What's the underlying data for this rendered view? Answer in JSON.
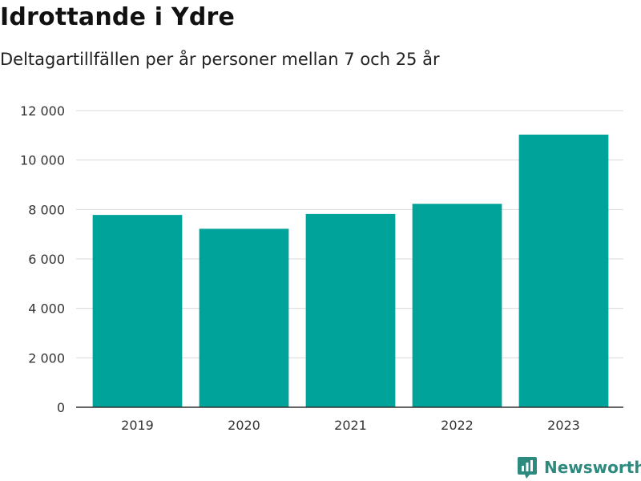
{
  "header": {
    "title": "Idrottande i Ydre",
    "subtitle": "Deltagartillfällen per år personer mellan 7 och 25 år"
  },
  "brand": {
    "name": "Newsworthy",
    "color": "#2c8a7e"
  },
  "chart_data": {
    "type": "bar",
    "categories": [
      "2019",
      "2020",
      "2021",
      "2022",
      "2023"
    ],
    "values": [
      7780,
      7220,
      7820,
      8230,
      11030
    ],
    "ylim": [
      0,
      12000
    ],
    "yticks": [
      0,
      2000,
      4000,
      6000,
      8000,
      10000,
      12000
    ],
    "ytick_labels": [
      "0",
      "2 000",
      "4 000",
      "6 000",
      "8 000",
      "10 000",
      "12 000"
    ],
    "grid": true,
    "bar_color": "#00a39a"
  }
}
